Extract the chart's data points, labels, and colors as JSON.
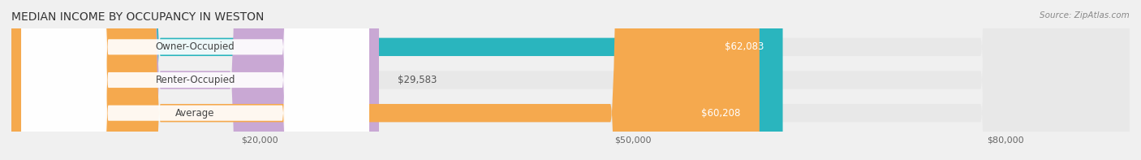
{
  "title": "MEDIAN INCOME BY OCCUPANCY IN WESTON",
  "source": "Source: ZipAtlas.com",
  "categories": [
    "Owner-Occupied",
    "Renter-Occupied",
    "Average"
  ],
  "values": [
    62083,
    29583,
    60208
  ],
  "bar_colors": [
    "#2ab5be",
    "#c9a8d4",
    "#f5a94e"
  ],
  "label_colors": [
    "#ffffff",
    "#666666",
    "#ffffff"
  ],
  "bg_color": "#f0f0f0",
  "bar_bg_color": "#e8e8e8",
  "xlim": [
    0,
    90000
  ],
  "xticks": [
    0,
    20000,
    50000,
    80000
  ],
  "xtick_labels": [
    "$20,000",
    "$50,000",
    "$80,000"
  ],
  "value_labels": [
    "$62,083",
    "$29,583",
    "$60,208"
  ],
  "figsize": [
    14.06,
    1.97
  ],
  "dpi": 100
}
